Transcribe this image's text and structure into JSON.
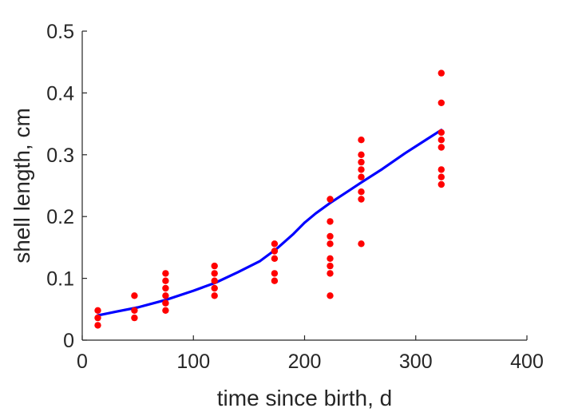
{
  "chart_data": {
    "type": "scatter",
    "title": "",
    "xlabel": "time since birth, d",
    "ylabel": "shell length, cm",
    "xlim": [
      0,
      400
    ],
    "ylim": [
      0,
      0.5
    ],
    "xticks": [
      0,
      100,
      200,
      300,
      400
    ],
    "yticks": [
      0,
      0.1,
      0.2,
      0.3,
      0.4,
      0.5
    ],
    "xtick_labels": [
      "0",
      "100",
      "200",
      "300",
      "400"
    ],
    "ytick_labels": [
      "0",
      "0.1",
      "0.2",
      "0.3",
      "0.4",
      "0.5"
    ],
    "grid": false,
    "series": [
      {
        "kind": "scatter",
        "color": "#ff0000",
        "points": [
          [
            14,
            0.048
          ],
          [
            14,
            0.036
          ],
          [
            14,
            0.024
          ],
          [
            47,
            0.072
          ],
          [
            47,
            0.048
          ],
          [
            47,
            0.036
          ],
          [
            75,
            0.108
          ],
          [
            75,
            0.096
          ],
          [
            75,
            0.084
          ],
          [
            75,
            0.072
          ],
          [
            75,
            0.06
          ],
          [
            75,
            0.048
          ],
          [
            119,
            0.12
          ],
          [
            119,
            0.108
          ],
          [
            119,
            0.096
          ],
          [
            119,
            0.084
          ],
          [
            119,
            0.072
          ],
          [
            173,
            0.156
          ],
          [
            173,
            0.144
          ],
          [
            173,
            0.132
          ],
          [
            173,
            0.108
          ],
          [
            173,
            0.096
          ],
          [
            223,
            0.228
          ],
          [
            223,
            0.192
          ],
          [
            223,
            0.168
          ],
          [
            223,
            0.156
          ],
          [
            223,
            0.132
          ],
          [
            223,
            0.12
          ],
          [
            223,
            0.108
          ],
          [
            223,
            0.072
          ],
          [
            251,
            0.324
          ],
          [
            251,
            0.3
          ],
          [
            251,
            0.288
          ],
          [
            251,
            0.276
          ],
          [
            251,
            0.264
          ],
          [
            251,
            0.24
          ],
          [
            251,
            0.228
          ],
          [
            251,
            0.156
          ],
          [
            323,
            0.432
          ],
          [
            323,
            0.384
          ],
          [
            323,
            0.336
          ],
          [
            323,
            0.324
          ],
          [
            323,
            0.312
          ],
          [
            323,
            0.276
          ],
          [
            323,
            0.264
          ],
          [
            323,
            0.252
          ]
        ]
      },
      {
        "kind": "line",
        "color": "#0000ff",
        "points": [
          [
            14,
            0.04
          ],
          [
            30,
            0.046
          ],
          [
            50,
            0.053
          ],
          [
            75,
            0.065
          ],
          [
            100,
            0.08
          ],
          [
            120,
            0.093
          ],
          [
            140,
            0.11
          ],
          [
            160,
            0.128
          ],
          [
            175,
            0.148
          ],
          [
            190,
            0.172
          ],
          [
            200,
            0.19
          ],
          [
            210,
            0.205
          ],
          [
            223,
            0.222
          ],
          [
            240,
            0.242
          ],
          [
            251,
            0.255
          ],
          [
            270,
            0.277
          ],
          [
            290,
            0.302
          ],
          [
            310,
            0.325
          ],
          [
            323,
            0.34
          ]
        ]
      }
    ]
  }
}
